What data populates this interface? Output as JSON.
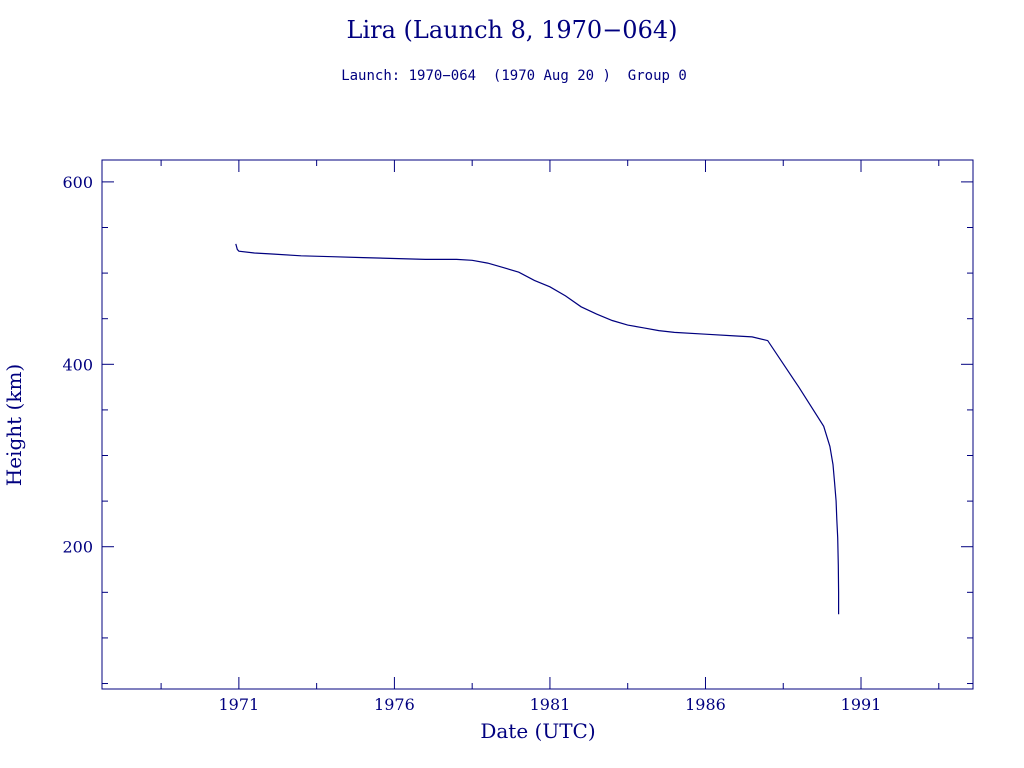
{
  "chart_data": {
    "type": "line",
    "title": "Lira (Launch 8, 1970−064)",
    "subtitle": "Launch: 1970−064  (1970 Aug 20 )  Group 0",
    "xlabel": "Date (UTC)",
    "ylabel": "Height (km)",
    "xlim": [
      1966.6,
      1994.6
    ],
    "ylim": [
      44,
      624
    ],
    "x_ticks_major": [
      1971,
      1976,
      1981,
      1986,
      1991
    ],
    "y_ticks_major": [
      200,
      400,
      600
    ],
    "color": "#00007f",
    "grid": false,
    "series": [
      {
        "x": [
          1970.9,
          1970.95,
          1971.0,
          1971.5,
          1972.0,
          1973.0,
          1974.0,
          1975.0,
          1976.0,
          1977.0,
          1978.0,
          1978.5,
          1979.0,
          1979.5,
          1980.0,
          1980.5,
          1981.0,
          1981.5,
          1982.0,
          1982.5,
          1983.0,
          1983.5,
          1984.0,
          1984.5,
          1985.0,
          1986.0,
          1987.0,
          1987.5,
          1988.0,
          1989.0,
          1989.8,
          1990.0,
          1990.1,
          1990.15,
          1990.2,
          1990.22,
          1990.25,
          1990.27,
          1990.28,
          1990.28
        ],
        "y": [
          532,
          526,
          524,
          522,
          521,
          519,
          518,
          517,
          516,
          515,
          515,
          514,
          511,
          506,
          501,
          492,
          485,
          475,
          463,
          455,
          448,
          443,
          440,
          437,
          435,
          433,
          431,
          430,
          426,
          375,
          332,
          310,
          290,
          270,
          250,
          230,
          210,
          180,
          150,
          126
        ]
      }
    ]
  }
}
